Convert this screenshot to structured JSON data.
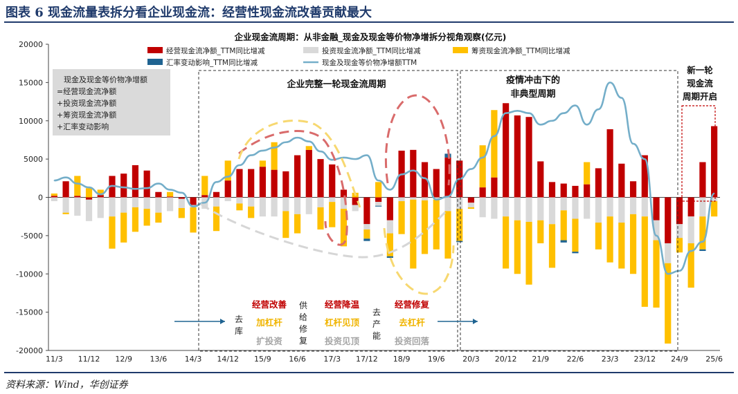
{
  "figure": {
    "title": "图表 6   现金流量表拆分看企业现金流：经营性现金流改善贡献最大",
    "source": "资料来源：Wind，华创证券"
  },
  "chart_data": {
    "type": "bar",
    "title": "企业现金流周期：从非金融_现金及现金等价物净增拆分视角观察(亿元)",
    "ylim": [
      -20000,
      20000
    ],
    "yticks": [
      -20000,
      -15000,
      -10000,
      -5000,
      0,
      5000,
      10000,
      15000,
      20000
    ],
    "x_tick_labels": [
      "11/3",
      "11/12",
      "12/9",
      "13/6",
      "14/3",
      "14/12",
      "15/9",
      "16/6",
      "17/3",
      "17/12",
      "18/9",
      "19/6",
      "20/3",
      "20/12",
      "21/9",
      "22/6",
      "23/3",
      "23/12",
      "24/9",
      "25/6"
    ],
    "grid": false,
    "legend_position": "top",
    "categories": [
      "11/3",
      "11/6",
      "11/9",
      "11/12",
      "12/3",
      "12/6",
      "12/9",
      "12/12",
      "13/3",
      "13/6",
      "13/9",
      "13/12",
      "14/3",
      "14/6",
      "14/9",
      "14/12",
      "15/3",
      "15/6",
      "15/9",
      "15/12",
      "16/3",
      "16/6",
      "16/9",
      "16/12",
      "17/3",
      "17/6",
      "17/9",
      "17/12",
      "18/3",
      "18/6",
      "18/9",
      "18/12",
      "19/3",
      "19/6",
      "19/9",
      "19/12",
      "20/3",
      "20/6",
      "20/9",
      "20/12",
      "21/3",
      "21/6",
      "21/9",
      "21/12",
      "22/3",
      "22/6",
      "22/9",
      "22/12",
      "23/3",
      "23/6",
      "23/9",
      "23/12",
      "24/3",
      "24/6",
      "24/9",
      "24/12",
      "25/3",
      "25/6"
    ],
    "series": [
      {
        "name": "经营现金流净额_TTM同比增减",
        "color": "#c00000",
        "kind": "bar",
        "values": [
          200,
          2100,
          200,
          -300,
          300,
          2800,
          3100,
          4200,
          3500,
          700,
          100,
          -200,
          -1000,
          300,
          700,
          2200,
          3700,
          3700,
          4000,
          3600,
          3400,
          5500,
          6200,
          5000,
          4300,
          1000,
          -1000,
          -3500,
          -600,
          -3000,
          6100,
          6200,
          4600,
          3700,
          5200,
          4800,
          -700,
          1300,
          2600,
          12300,
          10700,
          10500,
          4700,
          2000,
          1800,
          1500,
          1700,
          3800,
          8900,
          4400,
          2100,
          5500,
          -3000,
          -6000,
          -3500,
          -2500,
          4600,
          9300
        ]
      },
      {
        "name": "投资现金流净额_TTM同比增减",
        "color": "#d9d9d9",
        "kind": "bar",
        "values": [
          -500,
          -2000,
          -2400,
          -2800,
          -2700,
          -2500,
          -2000,
          -1300,
          -1500,
          -2000,
          -1800,
          -1200,
          -300,
          -1500,
          -1200,
          -500,
          -800,
          -1200,
          -2500,
          -2500,
          -1800,
          -2200,
          -2200,
          -1300,
          -600,
          -1500,
          -800,
          -700,
          -500,
          -1700,
          -500,
          -300,
          -400,
          -300,
          -1800,
          -1500,
          -600,
          -2600,
          -2800,
          -2500,
          -3000,
          -3200,
          -3000,
          -3500,
          -1700,
          -2800,
          -2800,
          -3300,
          -2500,
          -3300,
          -2200,
          -2500,
          -2600,
          -2600,
          -1800,
          -3500,
          -2500,
          -500
        ]
      },
      {
        "name": "筹资现金流净额_TTM同比增减",
        "color": "#ffc000",
        "kind": "bar",
        "values": [
          300,
          -200,
          2600,
          1200,
          700,
          -4200,
          -3900,
          -3200,
          -2200,
          -1300,
          600,
          -1300,
          -3300,
          2500,
          -3200,
          2600,
          -900,
          -1500,
          800,
          3600,
          -3500,
          -2500,
          500,
          -2900,
          -3300,
          -4900,
          600,
          -1200,
          2000,
          -3000,
          -4300,
          -9000,
          -7000,
          -6500,
          -6200,
          -4200,
          -200,
          5500,
          8800,
          -6800,
          -7000,
          -8200,
          -3000,
          -5700,
          -3900,
          -4300,
          2900,
          -3500,
          -6000,
          -6000,
          -7800,
          -11800,
          -8800,
          -10500,
          -1900,
          -5800,
          -4300,
          -2000
        ]
      },
      {
        "name": "汇率变动影响_TTM同比增减",
        "color": "#1f6391",
        "kind": "bar",
        "values": [
          0,
          0,
          0,
          0,
          0,
          0,
          0,
          0,
          0,
          0,
          0,
          0,
          0,
          0,
          0,
          0,
          0,
          0,
          0,
          0,
          0,
          0,
          0,
          0,
          0,
          0,
          0,
          -300,
          -100,
          -200,
          0,
          0,
          0,
          0,
          500,
          -150,
          0,
          0,
          0,
          0,
          0,
          0,
          0,
          0,
          -300,
          -200,
          0,
          0,
          0,
          0,
          0,
          0,
          0,
          0,
          0,
          0,
          -200,
          0
        ]
      },
      {
        "name": "现金及现金等价物净增额TTM",
        "color": "#74aec9",
        "kind": "line",
        "values": [
          2200,
          2600,
          1800,
          1300,
          400,
          1500,
          1300,
          1100,
          1200,
          1800,
          1000,
          600,
          -1200,
          -700,
          2000,
          2700,
          4200,
          5500,
          6100,
          6500,
          7200,
          7800,
          7300,
          6000,
          4900,
          5200,
          5000,
          5500,
          2200,
          1000,
          3000,
          3500,
          2500,
          -300,
          100,
          2400,
          3700,
          5200,
          8000,
          11000,
          11300,
          11000,
          9500,
          10000,
          11000,
          12000,
          9500,
          11500,
          15000,
          13000,
          7000,
          5000,
          -5000,
          -10000,
          -9600,
          -7000,
          -5800,
          500
        ]
      }
    ],
    "legend_labels": [
      "经营现金流净额_TTM同比增减",
      "投资现金流净额_TTM同比增减",
      "筹资现金流净额_TTM同比增减",
      "汇率变动影响_TTM同比增减",
      "现金及现金等价物净增额TTM"
    ],
    "formula_box": [
      "现金及现金等价物净增额",
      "=经营现金流净额",
      "+投资现金流净额",
      "+筹资现金流净额",
      "+汇率变动影响"
    ],
    "annotations": {
      "period_full": "企业完整一轮现金流周期",
      "period_covid": [
        "疫情冲击下的",
        "非典型周期"
      ],
      "period_new": [
        "新一轮",
        "现金流",
        "周期开启"
      ],
      "phase1": {
        "vertical": "去库",
        "red": "",
        "yellow": "",
        "gray": ""
      },
      "phase2": {
        "red": "经营改善",
        "yellow": "加杠杆",
        "gray": "扩投资"
      },
      "phase3": {
        "vertical": "供给修复"
      },
      "phase4": {
        "red": "经营降温",
        "yellow": "杠杆见顶",
        "gray": "投资见顶"
      },
      "phase5": {
        "vertical": "去产能"
      },
      "phase6": {
        "red": "经营修复",
        "yellow": "去杠杆",
        "gray": "投资回落"
      }
    }
  }
}
